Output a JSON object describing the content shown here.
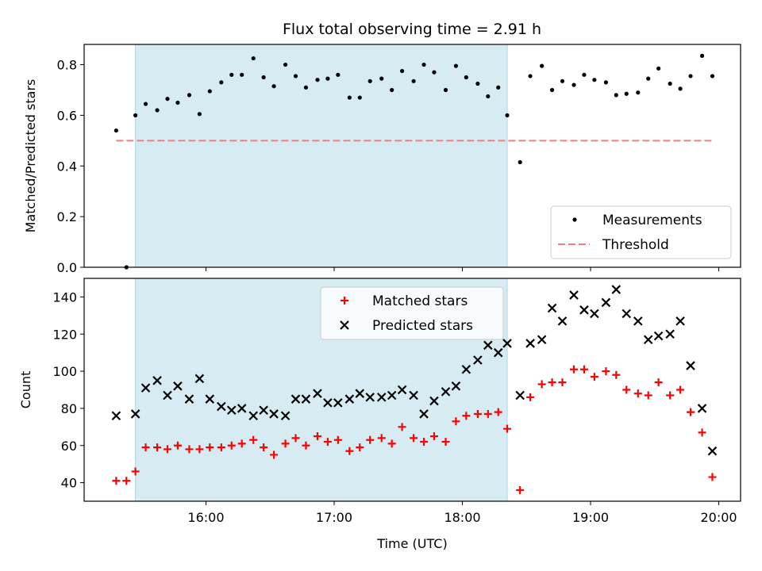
{
  "title": "Flux total observing time = 2.91 h",
  "colors": {
    "shade": "#add8e6",
    "measure": "#000000",
    "threshold": "#f08080",
    "matched": "#ff0000",
    "predicted": "#000000"
  },
  "chart_data": [
    {
      "type": "scatter",
      "ylabel": "Matched/Predicted stars",
      "xlim": [
        15.05,
        20.17
      ],
      "ylim": [
        0,
        0.88
      ],
      "yticks": [
        "0.0",
        "0.2",
        "0.4",
        "0.6",
        "0.8"
      ],
      "ytick_values": [
        0,
        0.2,
        0.4,
        0.6,
        0.8
      ],
      "shaded_span": [
        15.45,
        18.35
      ],
      "legend": {
        "placement": "lower right",
        "entries": [
          "Measurements",
          "Threshold"
        ]
      },
      "threshold": {
        "name": "Threshold",
        "value": 0.5,
        "x_range": [
          15.3,
          19.95
        ]
      },
      "series": [
        {
          "name": "Measurements",
          "marker": "dot",
          "points": [
            [
              15.3,
              0.54
            ],
            [
              15.38,
              0.0
            ],
            [
              15.45,
              0.6
            ],
            [
              15.53,
              0.645
            ],
            [
              15.62,
              0.62
            ],
            [
              15.7,
              0.665
            ],
            [
              15.78,
              0.65
            ],
            [
              15.87,
              0.68
            ],
            [
              15.95,
              0.605
            ],
            [
              16.03,
              0.695
            ],
            [
              16.12,
              0.73
            ],
            [
              16.2,
              0.76
            ],
            [
              16.28,
              0.76
            ],
            [
              16.37,
              0.825
            ],
            [
              16.45,
              0.75
            ],
            [
              16.53,
              0.715
            ],
            [
              16.62,
              0.8
            ],
            [
              16.7,
              0.755
            ],
            [
              16.78,
              0.71
            ],
            [
              16.87,
              0.74
            ],
            [
              16.95,
              0.745
            ],
            [
              17.03,
              0.76
            ],
            [
              17.12,
              0.67
            ],
            [
              17.2,
              0.67
            ],
            [
              17.28,
              0.735
            ],
            [
              17.37,
              0.745
            ],
            [
              17.45,
              0.7
            ],
            [
              17.53,
              0.775
            ],
            [
              17.62,
              0.735
            ],
            [
              17.7,
              0.8
            ],
            [
              17.78,
              0.77
            ],
            [
              17.87,
              0.7
            ],
            [
              17.95,
              0.795
            ],
            [
              18.03,
              0.75
            ],
            [
              18.12,
              0.725
            ],
            [
              18.2,
              0.675
            ],
            [
              18.28,
              0.71
            ],
            [
              18.35,
              0.6
            ],
            [
              18.45,
              0.415
            ],
            [
              18.53,
              0.755
            ],
            [
              18.62,
              0.795
            ],
            [
              18.7,
              0.7
            ],
            [
              18.78,
              0.735
            ],
            [
              18.87,
              0.72
            ],
            [
              18.95,
              0.76
            ],
            [
              19.03,
              0.74
            ],
            [
              19.12,
              0.73
            ],
            [
              19.2,
              0.68
            ],
            [
              19.28,
              0.685
            ],
            [
              19.37,
              0.69
            ],
            [
              19.45,
              0.745
            ],
            [
              19.53,
              0.785
            ],
            [
              19.62,
              0.725
            ],
            [
              19.7,
              0.705
            ],
            [
              19.78,
              0.755
            ],
            [
              19.87,
              0.835
            ],
            [
              19.95,
              0.755
            ]
          ]
        }
      ]
    },
    {
      "type": "scatter",
      "ylabel": "Count",
      "xlabel": "Time (UTC)",
      "xlim": [
        15.05,
        20.17
      ],
      "ylim": [
        30,
        150
      ],
      "yticks": [
        "40",
        "60",
        "80",
        "100",
        "120",
        "140"
      ],
      "ytick_values": [
        40,
        60,
        80,
        100,
        120,
        140
      ],
      "xticks": [
        "16:00",
        "17:00",
        "18:00",
        "19:00",
        "20:00"
      ],
      "xtick_values": [
        16,
        17,
        18,
        19,
        20
      ],
      "shaded_span": [
        15.45,
        18.35
      ],
      "legend": {
        "placement": "upper center",
        "entries": [
          "Matched stars",
          "Predicted stars"
        ]
      },
      "series": [
        {
          "name": "Matched stars",
          "marker": "plus",
          "points": [
            [
              15.3,
              41
            ],
            [
              15.38,
              41
            ],
            [
              15.45,
              46
            ],
            [
              15.53,
              59
            ],
            [
              15.62,
              59
            ],
            [
              15.7,
              58
            ],
            [
              15.78,
              60
            ],
            [
              15.87,
              58
            ],
            [
              15.95,
              58
            ],
            [
              16.03,
              59
            ],
            [
              16.12,
              59
            ],
            [
              16.2,
              60
            ],
            [
              16.28,
              61
            ],
            [
              16.37,
              63
            ],
            [
              16.45,
              59
            ],
            [
              16.53,
              55
            ],
            [
              16.62,
              61
            ],
            [
              16.7,
              64
            ],
            [
              16.78,
              60
            ],
            [
              16.87,
              65
            ],
            [
              16.95,
              62
            ],
            [
              17.03,
              63
            ],
            [
              17.12,
              57
            ],
            [
              17.2,
              59
            ],
            [
              17.28,
              63
            ],
            [
              17.37,
              64
            ],
            [
              17.45,
              61
            ],
            [
              17.53,
              70
            ],
            [
              17.62,
              64
            ],
            [
              17.7,
              62
            ],
            [
              17.78,
              65
            ],
            [
              17.87,
              62
            ],
            [
              17.95,
              73
            ],
            [
              18.03,
              76
            ],
            [
              18.12,
              77
            ],
            [
              18.2,
              77
            ],
            [
              18.28,
              78
            ],
            [
              18.35,
              69
            ],
            [
              18.45,
              36
            ],
            [
              18.53,
              86
            ],
            [
              18.62,
              93
            ],
            [
              18.7,
              94
            ],
            [
              18.78,
              94
            ],
            [
              18.87,
              101
            ],
            [
              18.95,
              101
            ],
            [
              19.03,
              97
            ],
            [
              19.12,
              100
            ],
            [
              19.2,
              98
            ],
            [
              19.28,
              90
            ],
            [
              19.37,
              88
            ],
            [
              19.45,
              87
            ],
            [
              19.53,
              94
            ],
            [
              19.62,
              87
            ],
            [
              19.7,
              90
            ],
            [
              19.78,
              78
            ],
            [
              19.87,
              67
            ],
            [
              19.95,
              43
            ]
          ]
        },
        {
          "name": "Predicted stars",
          "marker": "x",
          "points": [
            [
              15.3,
              76
            ],
            [
              15.45,
              77
            ],
            [
              15.53,
              91
            ],
            [
              15.62,
              95
            ],
            [
              15.7,
              87
            ],
            [
              15.78,
              92
            ],
            [
              15.87,
              85
            ],
            [
              15.95,
              96
            ],
            [
              16.03,
              85
            ],
            [
              16.12,
              81
            ],
            [
              16.2,
              79
            ],
            [
              16.28,
              80
            ],
            [
              16.37,
              76
            ],
            [
              16.45,
              79
            ],
            [
              16.53,
              77
            ],
            [
              16.62,
              76
            ],
            [
              16.7,
              85
            ],
            [
              16.78,
              85
            ],
            [
              16.87,
              88
            ],
            [
              16.95,
              83
            ],
            [
              17.03,
              83
            ],
            [
              17.12,
              85
            ],
            [
              17.2,
              88
            ],
            [
              17.28,
              86
            ],
            [
              17.37,
              86
            ],
            [
              17.45,
              87
            ],
            [
              17.53,
              90
            ],
            [
              17.62,
              87
            ],
            [
              17.7,
              77
            ],
            [
              17.78,
              84
            ],
            [
              17.87,
              89
            ],
            [
              17.95,
              92
            ],
            [
              18.03,
              101
            ],
            [
              18.12,
              106
            ],
            [
              18.2,
              114
            ],
            [
              18.28,
              110
            ],
            [
              18.35,
              115
            ],
            [
              18.45,
              87
            ],
            [
              18.53,
              115
            ],
            [
              18.62,
              117
            ],
            [
              18.7,
              134
            ],
            [
              18.78,
              127
            ],
            [
              18.87,
              141
            ],
            [
              18.95,
              133
            ],
            [
              19.03,
              131
            ],
            [
              19.12,
              137
            ],
            [
              19.2,
              144
            ],
            [
              19.28,
              131
            ],
            [
              19.37,
              127
            ],
            [
              19.45,
              117
            ],
            [
              19.53,
              119
            ],
            [
              19.62,
              120
            ],
            [
              19.7,
              127
            ],
            [
              19.78,
              103
            ],
            [
              19.87,
              80
            ],
            [
              19.95,
              57
            ]
          ]
        }
      ]
    }
  ]
}
